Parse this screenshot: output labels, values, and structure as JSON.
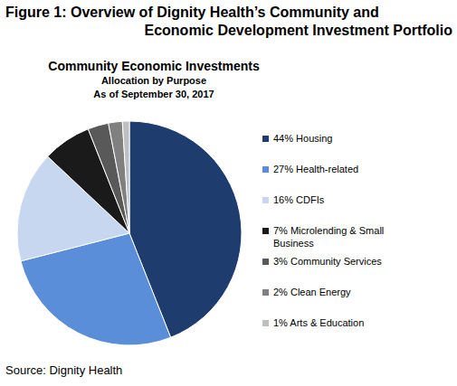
{
  "chart_data": {
    "type": "pie",
    "title": [
      "Figure 1: Overview of Dignity Health’s Community and",
      "Economic Development Investment Portfolio"
    ],
    "subtitle": "Community Economic Investments",
    "notes": [
      "Allocation by Purpose",
      "As of September 30, 2017"
    ],
    "source": "Source: Dignity Health",
    "categories": [
      "44% Housing",
      "27% Health-related",
      "16% CDFIs",
      "7% Microlending & Small Business",
      "3% Community Services",
      "2% Clean Energy",
      "1% Arts & Education"
    ],
    "values": [
      44,
      27,
      16,
      7,
      3,
      2,
      1
    ],
    "colors": [
      "#1f3c6e",
      "#5a8ed8",
      "#c6d7ef",
      "#1a1a1a",
      "#595959",
      "#808080",
      "#bfbfbf"
    ],
    "legend": "right",
    "data_labels": false
  }
}
